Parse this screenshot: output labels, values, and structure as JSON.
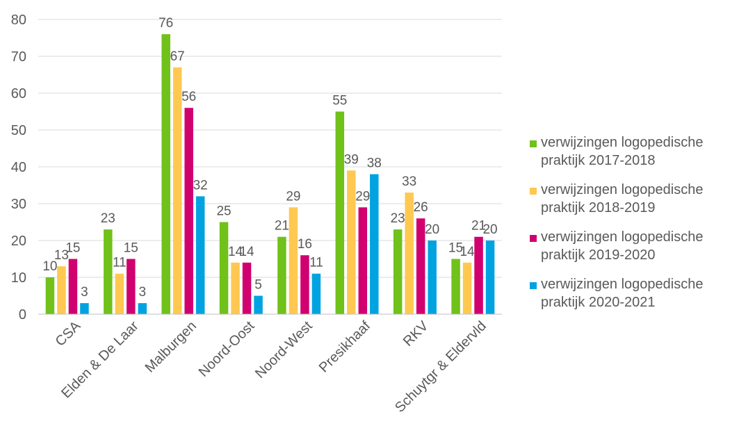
{
  "chart_data": {
    "type": "bar",
    "title": "",
    "xlabel": "",
    "ylabel": "",
    "ylim": [
      0,
      80
    ],
    "yticks": [
      "0",
      "10",
      "20",
      "30",
      "40",
      "50",
      "60",
      "70",
      "80"
    ],
    "grid": true,
    "legend_position": "right",
    "categories": [
      "CSA",
      "Elden & De Laar",
      "Malburgen",
      "Noord-Oost",
      "Noord-West",
      "Presikhaaf",
      "RKV",
      "Schuytgr & Eldervld"
    ],
    "series": [
      {
        "name": "verwijzingen logopedische praktijk 2017-2018",
        "color": "#70c11a",
        "values": [
          10,
          23,
          76,
          25,
          21,
          55,
          23,
          15
        ]
      },
      {
        "name": "verwijzingen logopedische praktijk 2018-2019",
        "color": "#ffc851",
        "values": [
          13,
          11,
          67,
          14,
          29,
          39,
          33,
          14
        ]
      },
      {
        "name": "verwijzingen logopedische praktijk 2019-2020",
        "color": "#d0006f",
        "values": [
          15,
          15,
          56,
          14,
          16,
          29,
          26,
          21
        ]
      },
      {
        "name": "verwijzingen logopedische praktijk 2020-2021",
        "color": "#00a3e0",
        "values": [
          3,
          3,
          32,
          5,
          11,
          38,
          20,
          20
        ]
      }
    ]
  }
}
